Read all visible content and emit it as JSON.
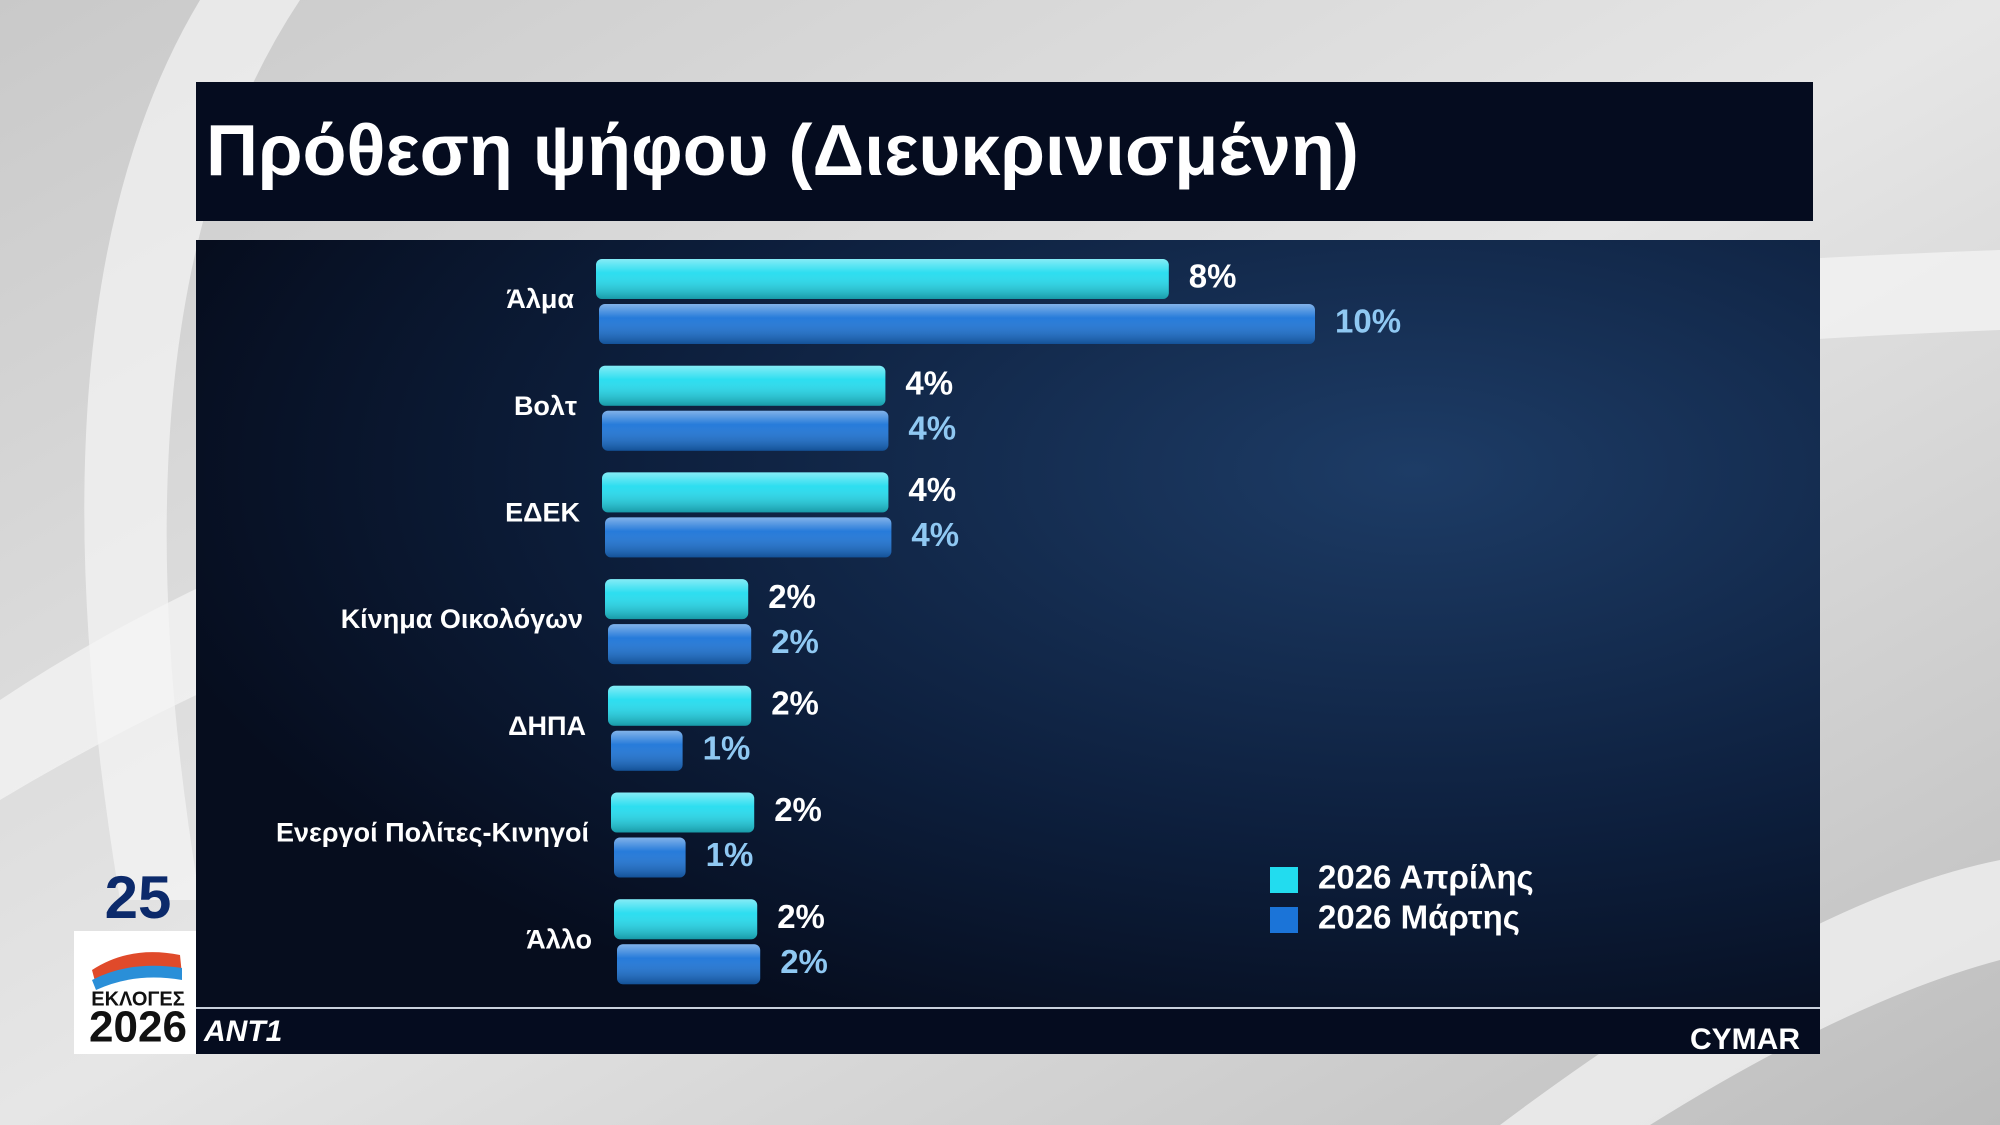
{
  "header": {
    "title": "Πρόθεση ψήφου  (Διευκρινισμένη)"
  },
  "chart_data": {
    "type": "bar",
    "orientation": "horizontal",
    "categories": [
      "Άλμα",
      "Βολτ",
      "ΕΔΕΚ",
      "Κίνημα Οικολόγων",
      "ΔΗΠΑ",
      "Ενεργοί Πολίτες-Κινηγοί",
      "Άλλο"
    ],
    "series": [
      {
        "name": "2026 Απρίλης",
        "color": "#22dcef",
        "label_color": "#ffffff",
        "values": [
          8,
          4,
          4,
          2,
          2,
          2,
          2
        ],
        "value_labels": [
          "8%",
          "4%",
          "4%",
          "2%",
          "2%",
          "2%",
          "2%"
        ]
      },
      {
        "name": "2026 Μάρτης",
        "color": "#1b74d8",
        "label_color": "#8fc8f2",
        "values": [
          10,
          4,
          4,
          2,
          1,
          1,
          2
        ],
        "value_labels": [
          "10%",
          "4%",
          "4%",
          "2%",
          "1%",
          "1%",
          "2%"
        ]
      }
    ]
  },
  "branding": {
    "day": "25",
    "election_label": "ΕΚΛΟΓΕΣ",
    "election_year": "2026",
    "channel": "ANT1",
    "pollster": "CYMAR"
  }
}
